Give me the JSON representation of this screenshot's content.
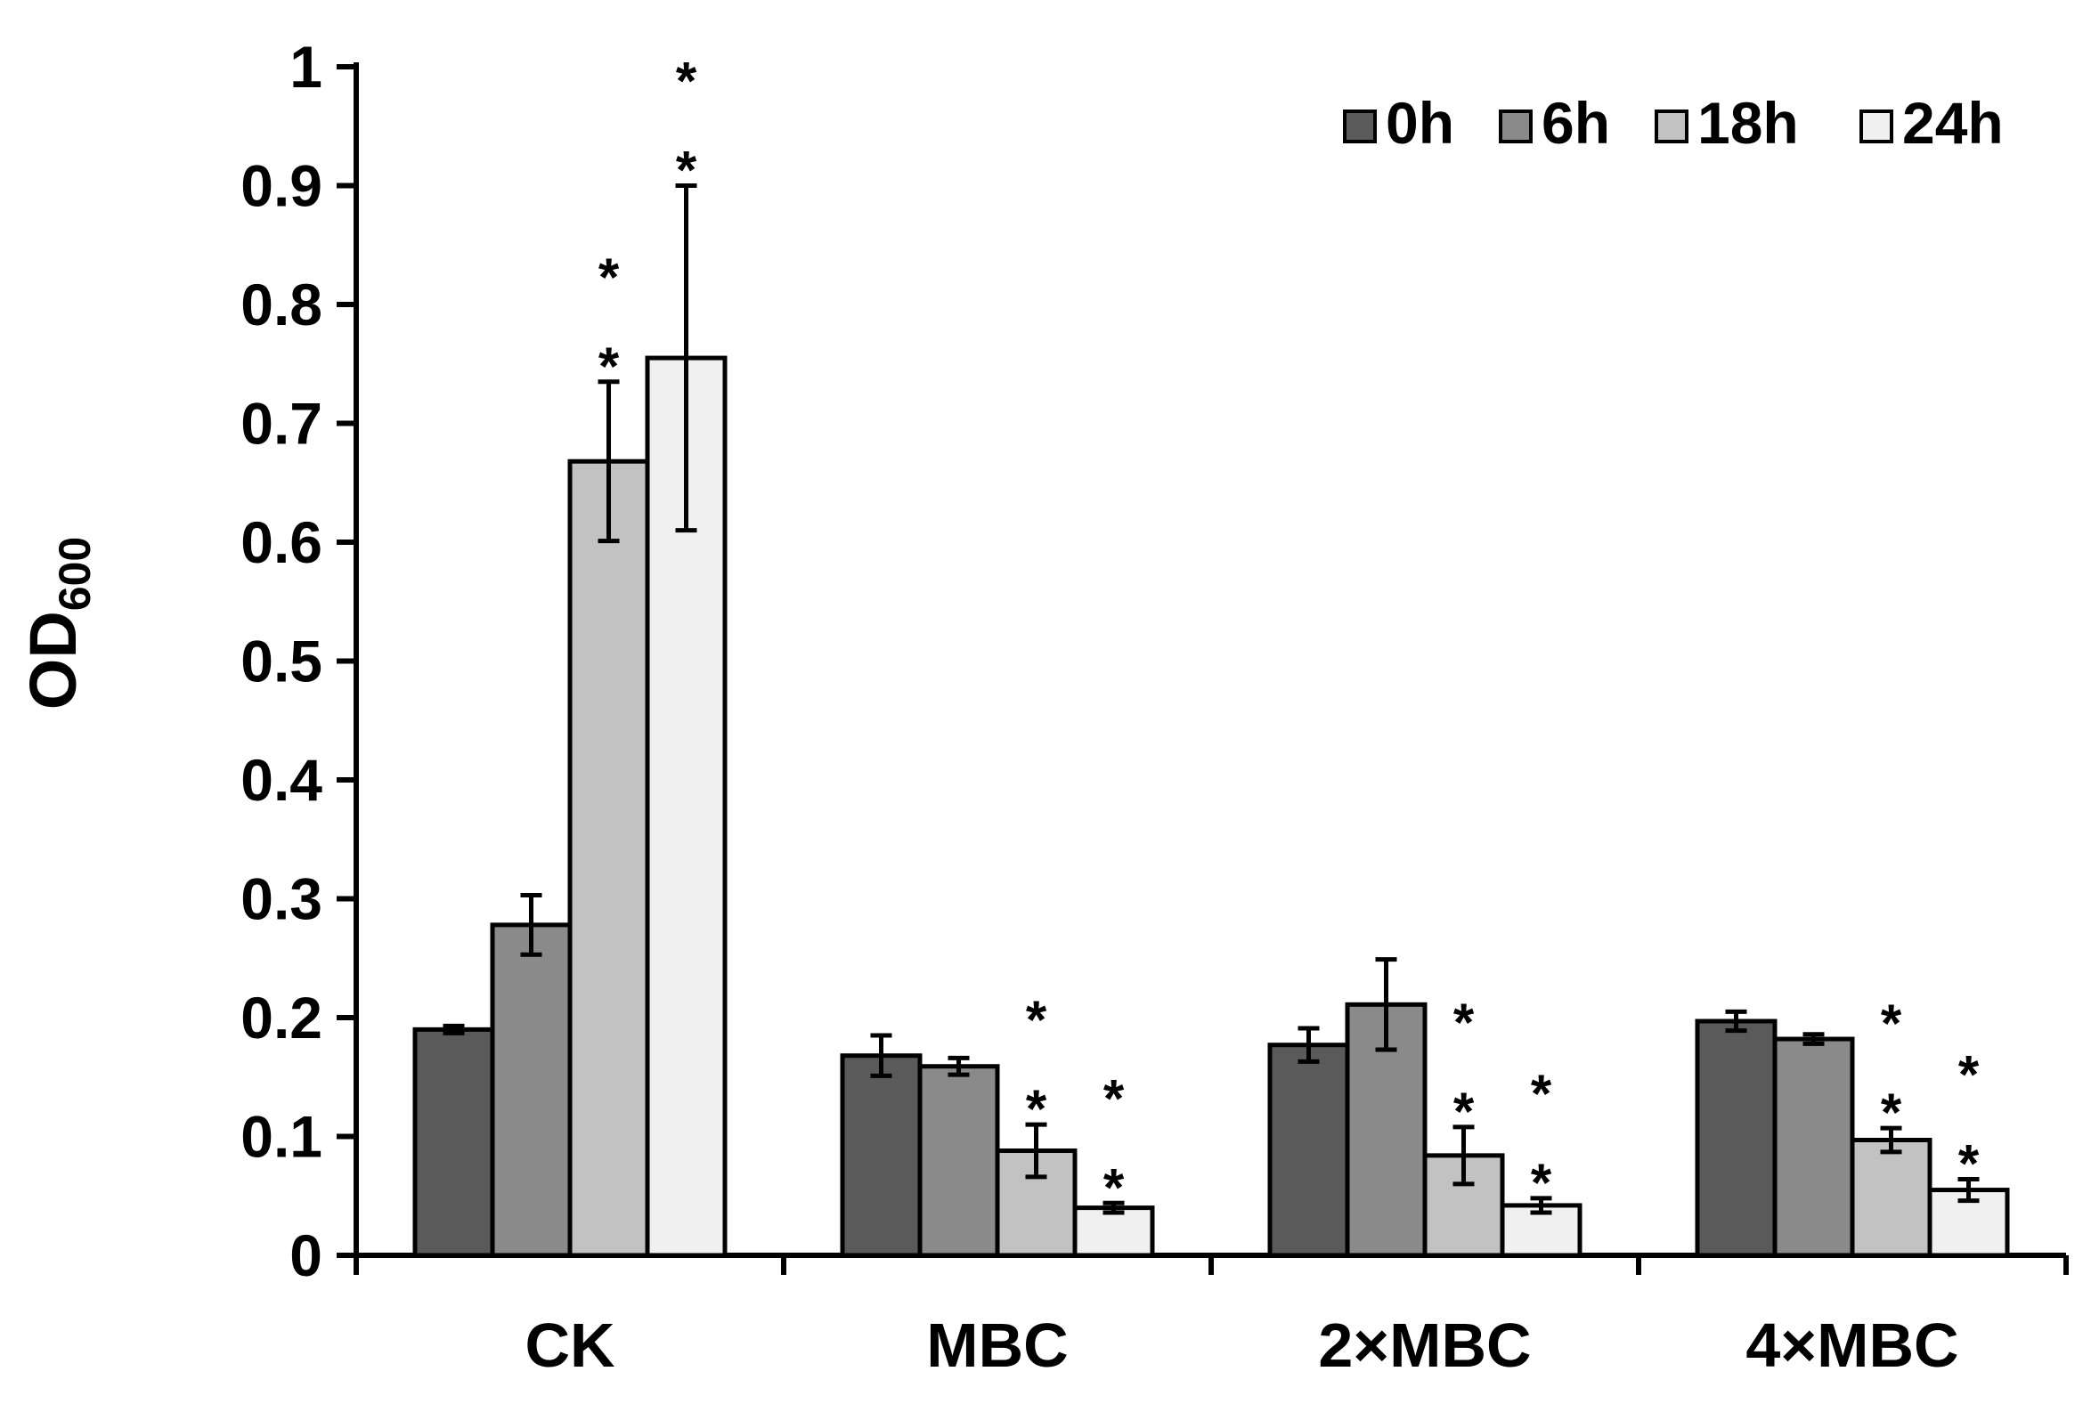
{
  "chart_data": {
    "type": "bar",
    "title": "",
    "xlabel": "",
    "ylabel": "OD",
    "ylabel_subscript": "600",
    "ylim": [
      0,
      1
    ],
    "yticks": [
      "0",
      "0.1",
      "0.2",
      "0.3",
      "0.4",
      "0.5",
      "0.6",
      "0.7",
      "0.8",
      "0.9",
      "1"
    ],
    "categories": [
      "CK",
      "MBC",
      "2×MBC",
      "4×MBC"
    ],
    "series": [
      {
        "name": "0h",
        "color": "#5a5a5a",
        "values": [
          0.19,
          0.168,
          0.177,
          0.197
        ],
        "errors": [
          0.003,
          0.017,
          0.014,
          0.008
        ]
      },
      {
        "name": "6h",
        "color": "#8a8a8a",
        "values": [
          0.278,
          0.159,
          0.211,
          0.182
        ],
        "errors": [
          0.025,
          0.007,
          0.038,
          0.004
        ]
      },
      {
        "name": "18h",
        "color": "#c2c2c2",
        "values": [
          0.668,
          0.088,
          0.084,
          0.097
        ],
        "errors": [
          0.067,
          0.022,
          0.024,
          0.01
        ]
      },
      {
        "name": "24h",
        "color": "#f0f0f0",
        "values": [
          0.755,
          0.04,
          0.042,
          0.055
        ],
        "errors": [
          0.145,
          0.004,
          0.006,
          0.009
        ]
      }
    ],
    "significance": [
      [
        0,
        0,
        2,
        2
      ],
      [
        0,
        0,
        2,
        2
      ],
      [
        0,
        0,
        2,
        2
      ],
      [
        0,
        0,
        2,
        2
      ]
    ],
    "significance_symbol": "*",
    "legend_position": "top-right",
    "grid": false
  }
}
